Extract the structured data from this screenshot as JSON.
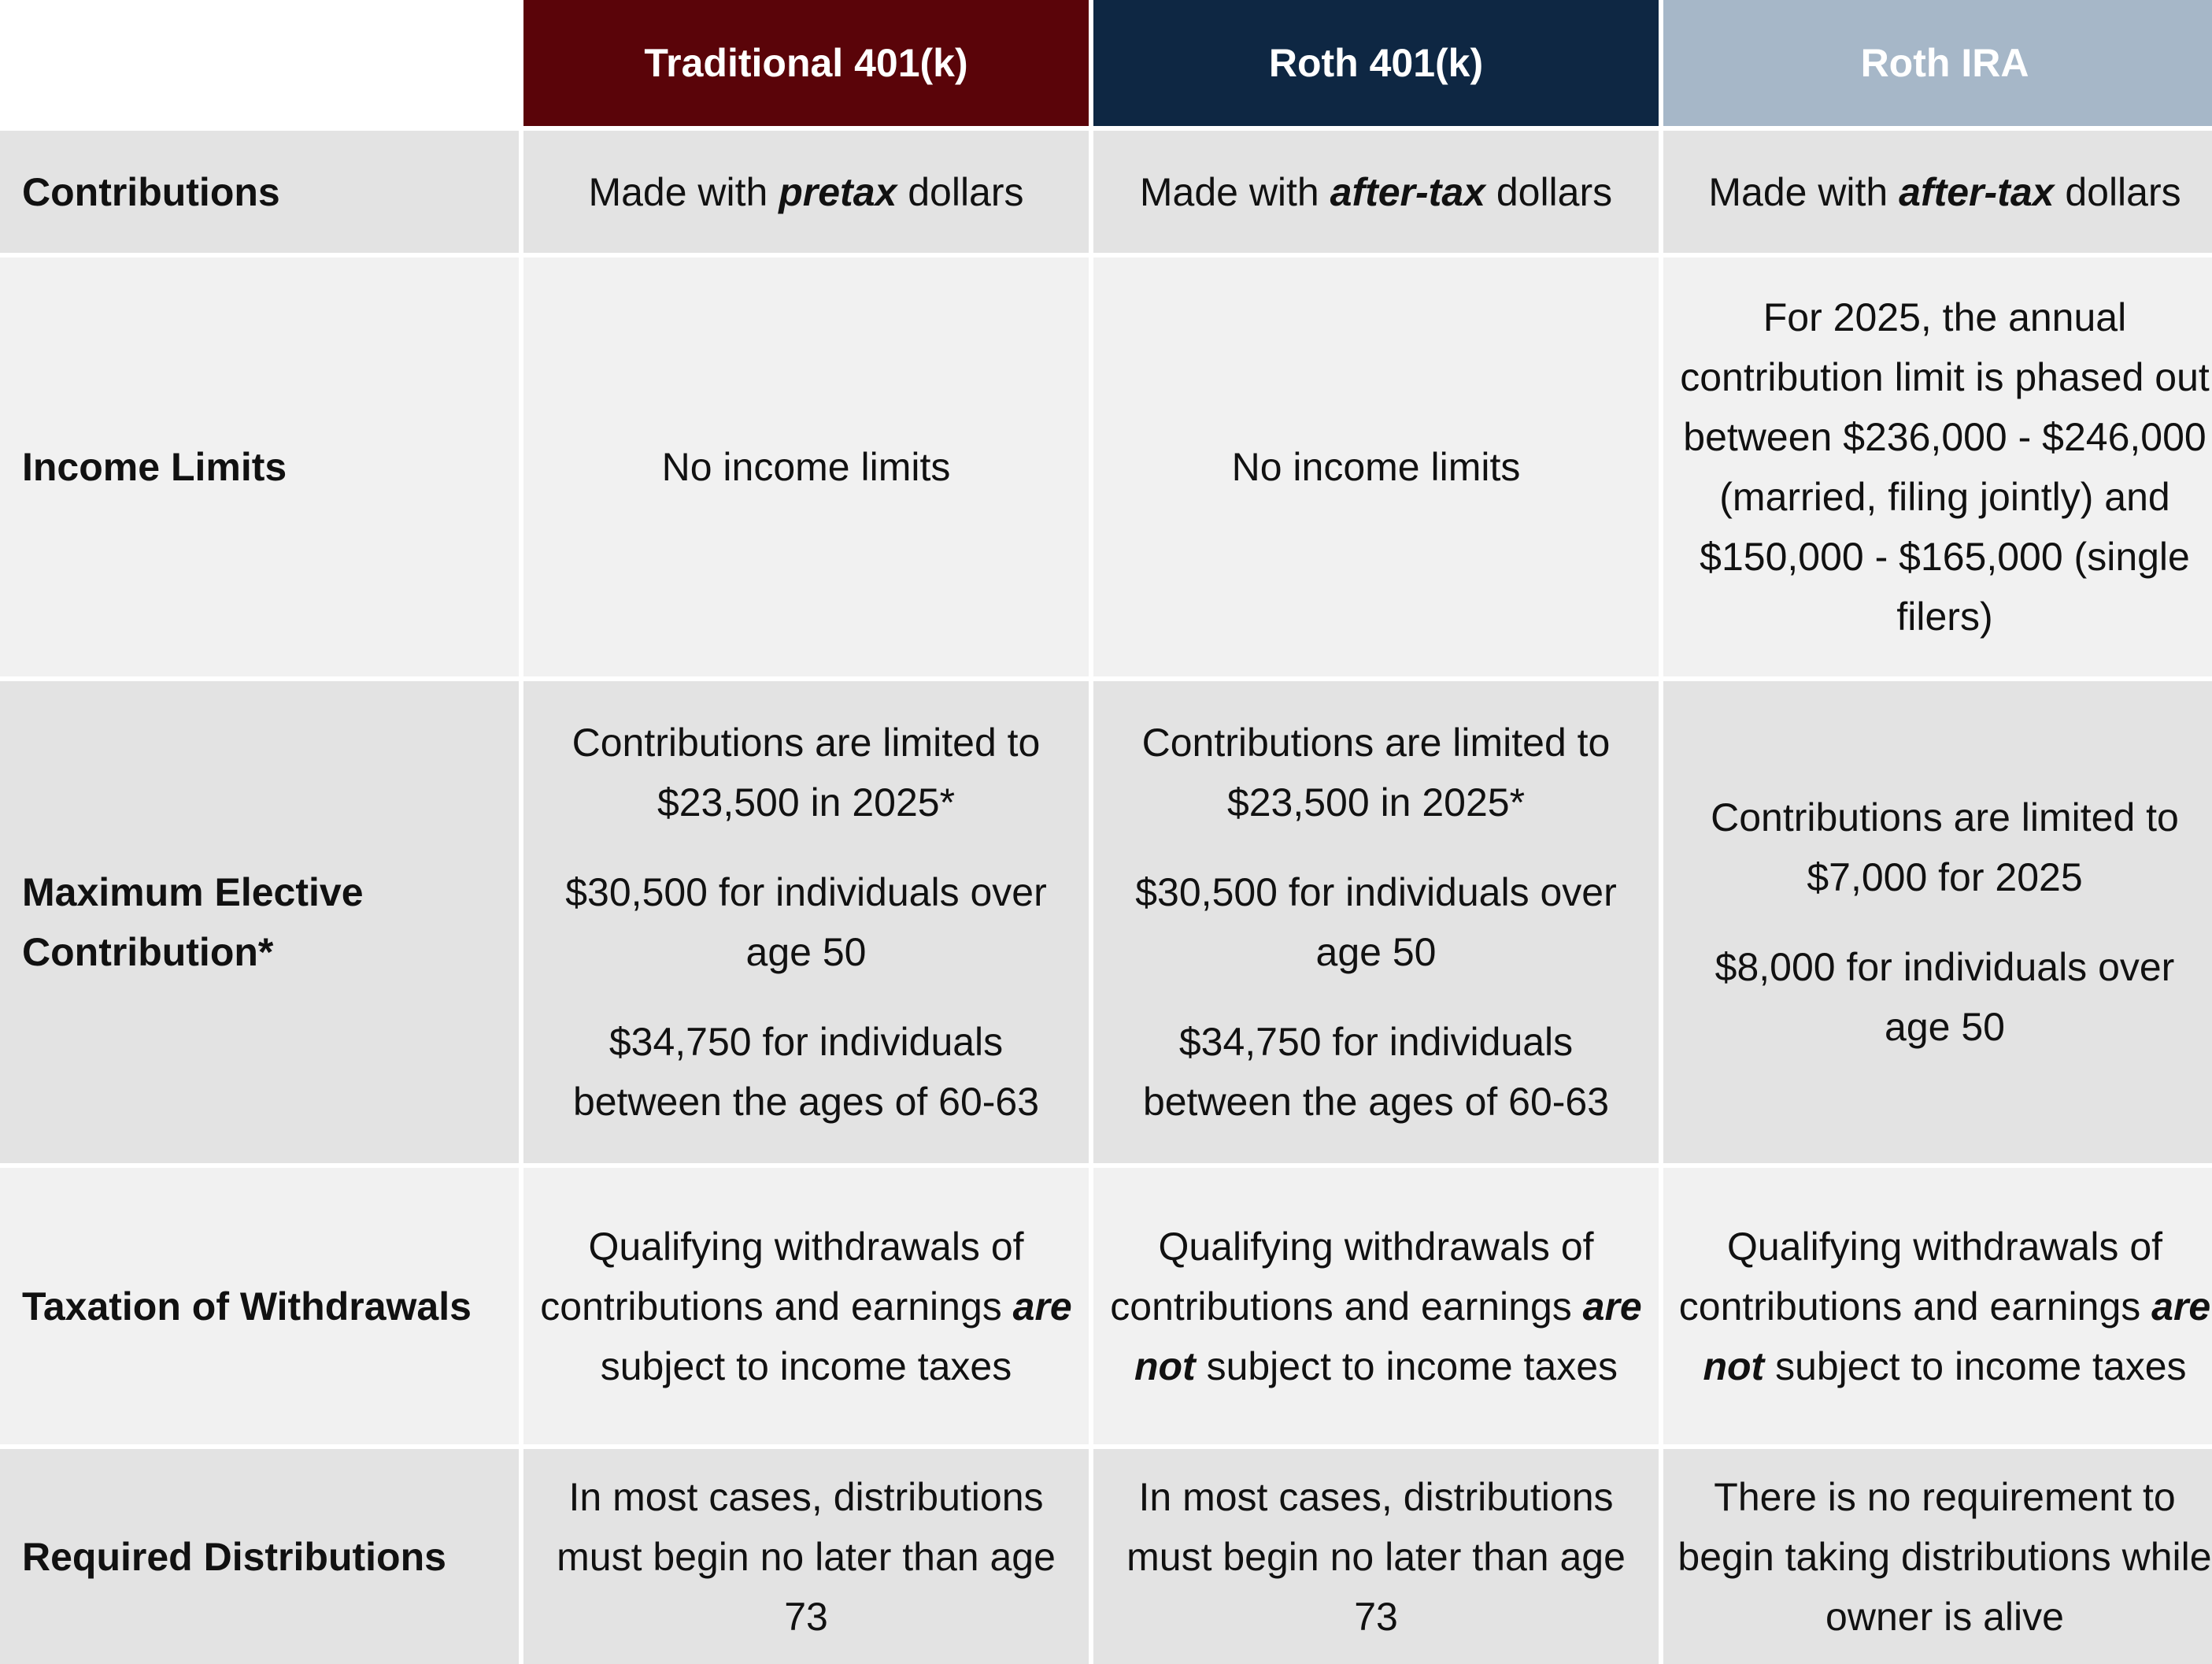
{
  "headers": {
    "corner": "",
    "traditional_401k": "Traditional 401(k)",
    "roth_401k": "Roth 401(k)",
    "roth_ira": "Roth IRA"
  },
  "colors": {
    "traditional_header": "#5a0409",
    "roth_401k_header": "#0e2743",
    "roth_ira_header": "#a6b7c8",
    "row_dark": "#e3e3e3",
    "row_light": "#f1f1f1"
  },
  "rows": {
    "contributions": {
      "label": "Contributions",
      "traditional": {
        "pre": "Made with ",
        "em": "pretax",
        "post": " dollars"
      },
      "roth_401k": {
        "pre": "Made with ",
        "em": "after-tax",
        "post": " dollars"
      },
      "roth_ira": {
        "pre": "Made with ",
        "em": "after-tax",
        "post": " dollars"
      }
    },
    "income_limits": {
      "label": "Income Limits",
      "traditional": "No income limits",
      "roth_401k": "No income limits",
      "roth_ira": "For 2025, the annual contribution limit is phased out between $236,000 - $246,000 (married, filing jointly) and $150,000 - $165,000 (single filers)"
    },
    "max_elective": {
      "label_line1": "Maximum Elective",
      "label_line2": "Contribution*",
      "traditional": {
        "p1": "Contributions are limited to $23,500 in 2025*",
        "p2": "$30,500 for individuals over age 50",
        "p3": "$34,750 for individuals between the ages of 60-63"
      },
      "roth_401k": {
        "p1": "Contributions are limited to $23,500 in 2025*",
        "p2": "$30,500 for individuals over age 50",
        "p3": "$34,750 for individuals between the ages of 60-63"
      },
      "roth_ira": {
        "p1": "Contributions are limited to $7,000 for 2025",
        "p2": "$8,000 for individuals over age 50"
      }
    },
    "taxation": {
      "label": "Taxation of Withdrawals",
      "traditional": {
        "pre": "Qualifying withdrawals of contributions and earnings ",
        "em": "are",
        "post": " subject to income taxes"
      },
      "roth_401k": {
        "pre": "Qualifying withdrawals of contributions and earnings ",
        "em": "are not",
        "post": " subject to income taxes"
      },
      "roth_ira": {
        "pre": "Qualifying withdrawals of contributions and earnings ",
        "em": "are not",
        "post": " subject to income taxes"
      }
    },
    "required_distributions": {
      "label": "Required Distributions",
      "traditional": "In most cases, distributions must begin no later than age 73",
      "roth_401k": "In most cases, distributions must begin no later than age 73",
      "roth_ira": "There is no requirement to begin taking distributions while owner is alive"
    }
  }
}
